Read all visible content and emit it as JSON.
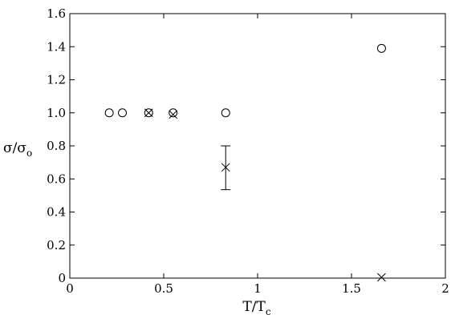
{
  "chart_data": {
    "type": "scatter",
    "title": "",
    "xlabel": {
      "main": "T/T",
      "sub": "c"
    },
    "ylabel": {
      "main": "σ/σ",
      "sub": "o"
    },
    "xlim": [
      0,
      2
    ],
    "ylim": [
      0,
      1.6
    ],
    "xticks": [
      {
        "value": 0,
        "label": "0"
      },
      {
        "value": 0.5,
        "label": "0.5"
      },
      {
        "value": 1,
        "label": "1"
      },
      {
        "value": 1.5,
        "label": "1.5"
      },
      {
        "value": 2,
        "label": "2"
      }
    ],
    "yticks": [
      {
        "value": 0,
        "label": "0"
      },
      {
        "value": 0.2,
        "label": "0.2"
      },
      {
        "value": 0.4,
        "label": "0.4"
      },
      {
        "value": 0.6,
        "label": "0.6"
      },
      {
        "value": 0.8,
        "label": "0.8"
      },
      {
        "value": 1.0,
        "label": "1.0"
      },
      {
        "value": 1.2,
        "label": "1.2"
      },
      {
        "value": 1.4,
        "label": "1.4"
      },
      {
        "value": 1.6,
        "label": "1.6"
      }
    ],
    "grid": false,
    "series": [
      {
        "marker": "circle",
        "points": [
          {
            "x": 0.21,
            "y": 1.0
          },
          {
            "x": 0.28,
            "y": 1.0
          },
          {
            "x": 0.42,
            "y": 1.0
          },
          {
            "x": 0.55,
            "y": 1.0
          },
          {
            "x": 0.83,
            "y": 1.0
          },
          {
            "x": 1.66,
            "y": 1.39
          }
        ]
      },
      {
        "marker": "cross",
        "points": [
          {
            "x": 0.42,
            "y": 1.0
          },
          {
            "x": 0.55,
            "y": 0.99
          },
          {
            "x": 0.83,
            "y": 0.67,
            "err_low": 0.535,
            "err_high": 0.8
          },
          {
            "x": 1.66,
            "y": 0.005
          }
        ]
      }
    ],
    "colors": {
      "axes": "#000000",
      "markers": "#000000",
      "background": "#ffffff"
    }
  }
}
